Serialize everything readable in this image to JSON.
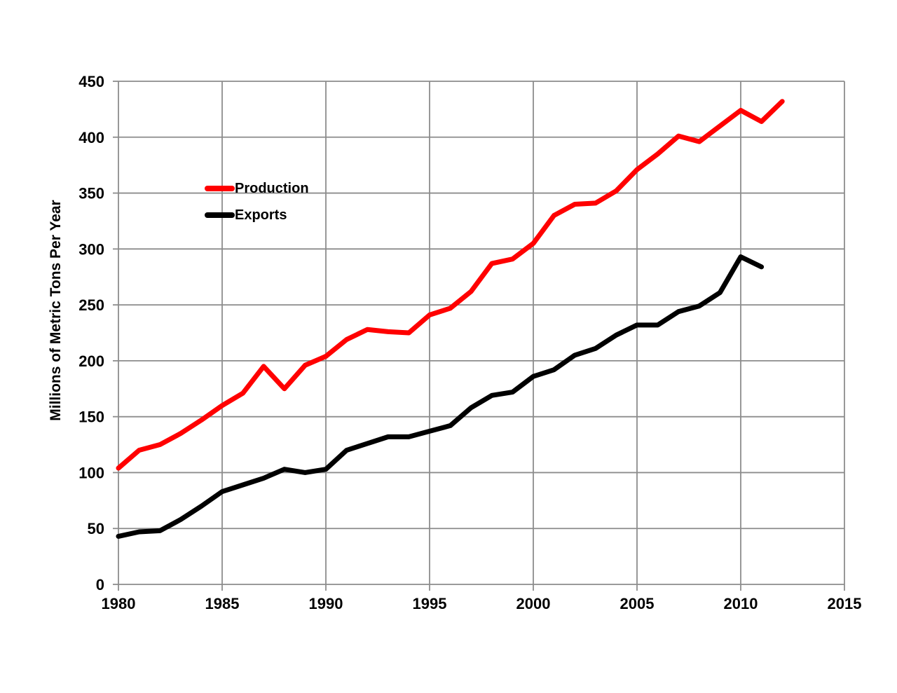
{
  "chart_data": {
    "type": "line",
    "title": "",
    "xlabel": "",
    "ylabel": "Millions of Metric Tons Per Year",
    "xlim": [
      1980,
      2015
    ],
    "ylim": [
      0,
      450
    ],
    "xticks": [
      1980,
      1985,
      1990,
      1995,
      2000,
      2005,
      2010,
      2015
    ],
    "yticks": [
      0,
      50,
      100,
      150,
      200,
      250,
      300,
      350,
      400,
      450
    ],
    "grid": true,
    "legend_position": "inside-upper-left",
    "series": [
      {
        "name": "Production",
        "color": "#ff0000",
        "x": [
          1980,
          1981,
          1982,
          1983,
          1984,
          1985,
          1986,
          1987,
          1988,
          1989,
          1990,
          1991,
          1992,
          1993,
          1994,
          1995,
          1996,
          1997,
          1998,
          1999,
          2000,
          2001,
          2002,
          2003,
          2004,
          2005,
          2006,
          2007,
          2008,
          2009,
          2010,
          2011,
          2012
        ],
        "values": [
          104,
          120,
          125,
          135,
          147,
          160,
          171,
          195,
          175,
          196,
          204,
          219,
          228,
          226,
          225,
          241,
          247,
          262,
          287,
          291,
          305,
          330,
          340,
          341,
          352,
          371,
          385,
          401,
          396,
          410,
          424,
          414,
          432
        ]
      },
      {
        "name": "Exports",
        "color": "#000000",
        "x": [
          1980,
          1981,
          1982,
          1983,
          1984,
          1985,
          1986,
          1987,
          1988,
          1989,
          1990,
          1991,
          1992,
          1993,
          1994,
          1995,
          1996,
          1997,
          1998,
          1999,
          2000,
          2001,
          2002,
          2003,
          2004,
          2005,
          2006,
          2007,
          2008,
          2009,
          2010,
          2011
        ],
        "values": [
          43,
          47,
          48,
          58,
          70,
          83,
          89,
          95,
          103,
          100,
          103,
          120,
          126,
          132,
          132,
          137,
          142,
          158,
          169,
          172,
          186,
          192,
          205,
          211,
          223,
          232,
          232,
          244,
          249,
          261,
          293,
          284
        ]
      }
    ]
  },
  "axes": {
    "y_title": "Millions of Metric Tons Per Year"
  },
  "legend": {
    "production_label": "Production",
    "exports_label": "Exports"
  },
  "colors": {
    "production": "#ff0000",
    "exports": "#000000",
    "grid": "#8c8c8c",
    "background": "#ffffff",
    "text": "#000000"
  }
}
